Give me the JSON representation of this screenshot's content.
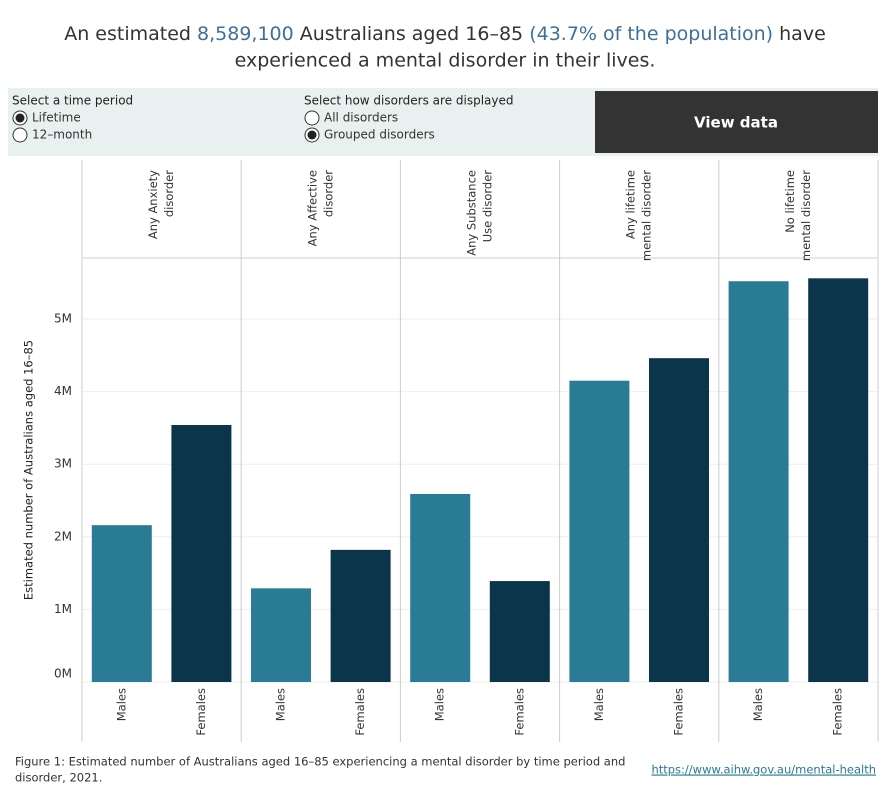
{
  "title": {
    "line1": [
      "An estimated",
      "8,589,100",
      "Australians aged 16–85",
      "(43.7% of the population)",
      "have"
    ],
    "line2": "experienced a mental disorder in their lives."
  },
  "controls": {
    "time_period": {
      "label": "Select a time period",
      "options": [
        "Lifetime",
        "12–month"
      ],
      "selected": 0
    },
    "display": {
      "label": "Select how disorders are displayed",
      "options": [
        "All disorders",
        "Grouped disorders"
      ],
      "selected": 1
    },
    "button": "View data"
  },
  "chart_data": {
    "type": "bar",
    "y_label": "Estimated number of Australians aged 16–85",
    "categories": [
      [
        "Any Anxiety",
        "disorder"
      ],
      [
        "Any Affective",
        "disorder"
      ],
      [
        "Any Substance",
        "Use disorder"
      ],
      [
        "Any lifetime",
        "mental disorder"
      ],
      [
        "No lifetime",
        "mental disorder"
      ]
    ],
    "series": [
      {
        "name": "Males",
        "color": "#2a7b96",
        "values": [
          2160000,
          1290000,
          2590000,
          4150000,
          5520000
        ]
      },
      {
        "name": "Females",
        "color": "#0b354b",
        "values": [
          3540000,
          1820000,
          1390000,
          4460000,
          5560000
        ]
      }
    ],
    "ylim": [
      0,
      5840000
    ],
    "yticks": [
      {
        "value": 0,
        "label": "0M"
      },
      {
        "value": 1000000,
        "label": "1M"
      },
      {
        "value": 2000000,
        "label": "2M"
      },
      {
        "value": 3000000,
        "label": "3M"
      },
      {
        "value": 4000000,
        "label": "4M"
      },
      {
        "value": 5000000,
        "label": "5M"
      }
    ],
    "grid": true
  },
  "footer": {
    "caption": [
      "Figure 1: Estimated number of Australians aged 16–85 experiencing a mental disorder by time period and",
      "disorder, 2021."
    ],
    "link": "https://www.aihw.gov.au/mental-health"
  }
}
